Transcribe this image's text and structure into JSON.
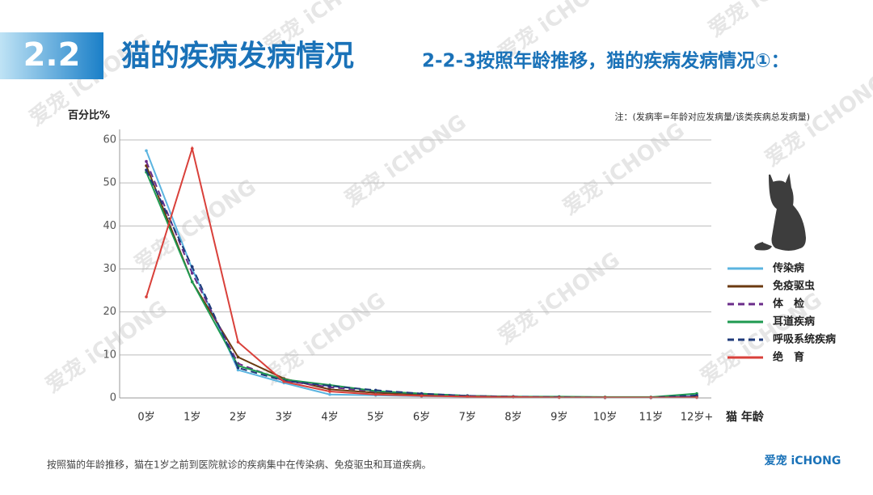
{
  "header": {
    "number": "2.2",
    "title": "猫的疾病发病情况",
    "subtitle": "2-2-3按照年龄推移，猫的疾病发病情况①："
  },
  "chart_data": {
    "type": "line",
    "y_label": "百分比%",
    "x_label": "猫 年龄",
    "note": "注：(发病率=年龄对应发病量/该类疾病总发病量)",
    "categories": [
      "0岁",
      "1岁",
      "2岁",
      "3岁",
      "4岁",
      "5岁",
      "6岁",
      "7岁",
      "8岁",
      "9岁",
      "10岁",
      "11岁",
      "12岁+"
    ],
    "series": [
      {
        "name": "传染病",
        "color": "#5bb4e0",
        "style": "solid",
        "values": [
          57.5,
          30,
          6.5,
          3.5,
          0.8,
          0.6,
          0.4,
          0.3,
          0.2,
          0.2,
          0.1,
          0.1,
          0.5
        ]
      },
      {
        "name": "免疫驱虫",
        "color": "#6b3a10",
        "style": "solid",
        "values": [
          54,
          27,
          9.5,
          4.5,
          2,
          1.2,
          0.8,
          0.4,
          0.3,
          0.2,
          0.1,
          0.1,
          0.3
        ]
      },
      {
        "name": "体　检",
        "color": "#6b2c8a",
        "style": "dashed",
        "values": [
          55,
          29,
          8,
          4,
          2.5,
          1.5,
          1,
          0.5,
          0.3,
          0.2,
          0.1,
          0.1,
          0.3
        ]
      },
      {
        "name": "耳道疾病",
        "color": "#1e9a50",
        "style": "solid",
        "values": [
          52.5,
          27,
          7.5,
          4.3,
          3,
          1.6,
          1,
          0.5,
          0.3,
          0.3,
          0.2,
          0.2,
          1
        ]
      },
      {
        "name": "呼吸系统疾病",
        "color": "#1f3a7a",
        "style": "dashed",
        "values": [
          53,
          30.5,
          7,
          4,
          2.8,
          1.8,
          1,
          0.5,
          0.3,
          0.2,
          0.1,
          0.1,
          0.6
        ]
      },
      {
        "name": "绝　育",
        "color": "#d9403a",
        "style": "solid",
        "values": [
          23.5,
          58,
          13,
          3.8,
          1.5,
          0.8,
          0.5,
          0.3,
          0.2,
          0.1,
          0.1,
          0.1,
          0.1
        ]
      }
    ],
    "ylim": [
      0,
      60
    ],
    "yticks": [
      0,
      10,
      20,
      30,
      40,
      50,
      60
    ],
    "grid": true
  },
  "footer": {
    "caption": "按照猫的年龄推移，猫在1岁之前到医院就诊的疾病集中在传染病、免疫驱虫和耳道疾病。",
    "logo": "爱宠 iCHONG",
    "watermark": "爱宠 iCHONG"
  }
}
